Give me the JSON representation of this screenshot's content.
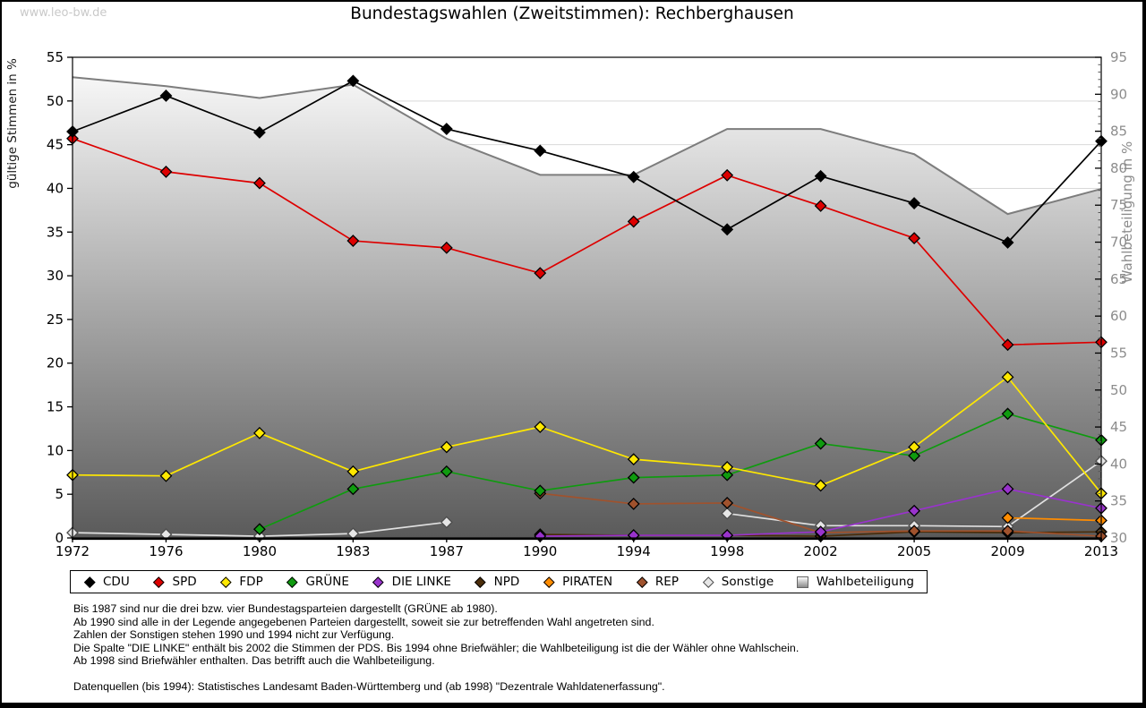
{
  "watermark": "www.leo-bw.de",
  "title": "Bundestagswahlen (Zweitstimmen): Rechberghausen",
  "axes": {
    "left_label": "gültige Stimmen in %",
    "right_label": "Wahlbeteiligung in %",
    "left_range": [
      0,
      55
    ],
    "right_range": [
      30,
      95
    ],
    "left_tick_step": 5,
    "right_tick_step": 5
  },
  "chart_data": {
    "type": "line",
    "title": "Bundestagswahlen (Zweitstimmen): Rechberghausen",
    "xlabel": "",
    "ylabel_left": "gültige Stimmen in %",
    "ylabel_right": "Wahlbeteiligung in %",
    "ylim_left": [
      0,
      55
    ],
    "ylim_right": [
      30,
      95
    ],
    "grid": true,
    "legend_position": "bottom",
    "categories": [
      "1972",
      "1976",
      "1980",
      "1983",
      "1987",
      "1990",
      "1994",
      "1998",
      "2002",
      "2005",
      "2009",
      "2013"
    ],
    "series": [
      {
        "name": "CDU",
        "axis": "left",
        "color": "#000000",
        "values": [
          46.5,
          50.6,
          46.4,
          52.3,
          46.8,
          44.3,
          41.3,
          35.3,
          41.4,
          38.3,
          33.8,
          45.4
        ]
      },
      {
        "name": "SPD",
        "axis": "left",
        "color": "#dd0000",
        "values": [
          45.7,
          41.9,
          40.6,
          34.0,
          33.2,
          30.3,
          36.2,
          41.5,
          38.0,
          34.3,
          22.1,
          22.4
        ]
      },
      {
        "name": "FDP",
        "axis": "left",
        "color": "#ffe800",
        "values": [
          7.2,
          7.1,
          12.0,
          7.6,
          10.4,
          12.7,
          9.0,
          8.1,
          6.0,
          10.4,
          18.4,
          5.1
        ]
      },
      {
        "name": "GRÜNE",
        "axis": "left",
        "color": "#0f9b0f",
        "values": [
          null,
          null,
          1.0,
          5.6,
          7.6,
          5.4,
          6.9,
          7.2,
          10.8,
          9.4,
          14.2,
          11.2
        ]
      },
      {
        "name": "DIE LINKE",
        "axis": "left",
        "color": "#9933cc",
        "values": [
          null,
          null,
          null,
          null,
          null,
          0.2,
          0.3,
          0.3,
          0.7,
          3.1,
          5.6,
          3.4
        ]
      },
      {
        "name": "NPD",
        "axis": "left",
        "color": "#4b2d0a",
        "values": [
          null,
          null,
          null,
          null,
          null,
          0.4,
          0.3,
          0.3,
          0.2,
          0.7,
          0.6,
          0.7
        ]
      },
      {
        "name": "PIRATEN",
        "axis": "left",
        "color": "#ff8c00",
        "values": [
          null,
          null,
          null,
          null,
          null,
          null,
          null,
          null,
          null,
          null,
          2.3,
          2.0
        ]
      },
      {
        "name": "REP",
        "axis": "left",
        "color": "#a0522d",
        "values": [
          null,
          null,
          null,
          null,
          null,
          5.1,
          3.9,
          4.0,
          0.6,
          0.8,
          0.8,
          0.2
        ]
      },
      {
        "name": "Sonstige",
        "axis": "left",
        "color": "#e0e0e0",
        "marker_fill": "#e6e6e6",
        "marker_stroke": "#4d4d4d",
        "values": [
          0.6,
          0.4,
          0.2,
          0.5,
          1.8,
          null,
          null,
          2.8,
          1.4,
          1.4,
          1.3,
          8.8
        ]
      },
      {
        "name": "Wahlbeteiligung",
        "axis": "right",
        "type": "area",
        "color": "#7d7d7d",
        "fill_top": "#fdfdfd",
        "fill_bottom": "#5a5a5a",
        "values": [
          92.3,
          91.1,
          89.5,
          91.3,
          84.0,
          79.1,
          79.1,
          85.3,
          85.3,
          81.9,
          73.8,
          77.2
        ]
      }
    ]
  },
  "legend": {
    "items": [
      {
        "label": "CDU",
        "color": "#000000",
        "shape": "diamond"
      },
      {
        "label": "SPD",
        "color": "#dd0000",
        "shape": "diamond"
      },
      {
        "label": "FDP",
        "color": "#ffe800",
        "shape": "diamond"
      },
      {
        "label": "GRÜNE",
        "color": "#0f9b0f",
        "shape": "diamond"
      },
      {
        "label": "DIE LINKE",
        "color": "#9933cc",
        "shape": "diamond"
      },
      {
        "label": "NPD",
        "color": "#4b2d0a",
        "shape": "diamond"
      },
      {
        "label": "PIRATEN",
        "color": "#ff8c00",
        "shape": "diamond"
      },
      {
        "label": "REP",
        "color": "#a0522d",
        "shape": "diamond"
      },
      {
        "label": "Sonstige",
        "color": "#e6e6e6",
        "shape": "diamond",
        "stroke": "#4d4d4d"
      },
      {
        "label": "Wahlbeteiligung",
        "color": "gradient",
        "shape": "square"
      }
    ]
  },
  "notes": [
    "Bis 1987 sind nur die drei bzw. vier Bundestagsparteien dargestellt (GRÜNE ab 1980).",
    "Ab 1990 sind alle in der Legende angegebenen Parteien dargestellt, soweit sie zur betreffenden Wahl angetreten sind.",
    "Zahlen der Sonstigen stehen 1990 und 1994 nicht zur Verfügung.",
    "Die Spalte \"DIE LINKE\" enthält bis 2002 die Stimmen der PDS. Bis 1994 ohne Briefwähler; die Wahlbeteiligung ist die der Wähler ohne Wahlschein.",
    "Ab 1998 sind Briefwähler enthalten. Das betrifft auch die Wahlbeteiligung."
  ],
  "source": "Datenquellen (bis 1994): Statistisches Landesamt Baden-Württemberg und (ab 1998) \"Dezentrale Wahldatenerfassung\"."
}
